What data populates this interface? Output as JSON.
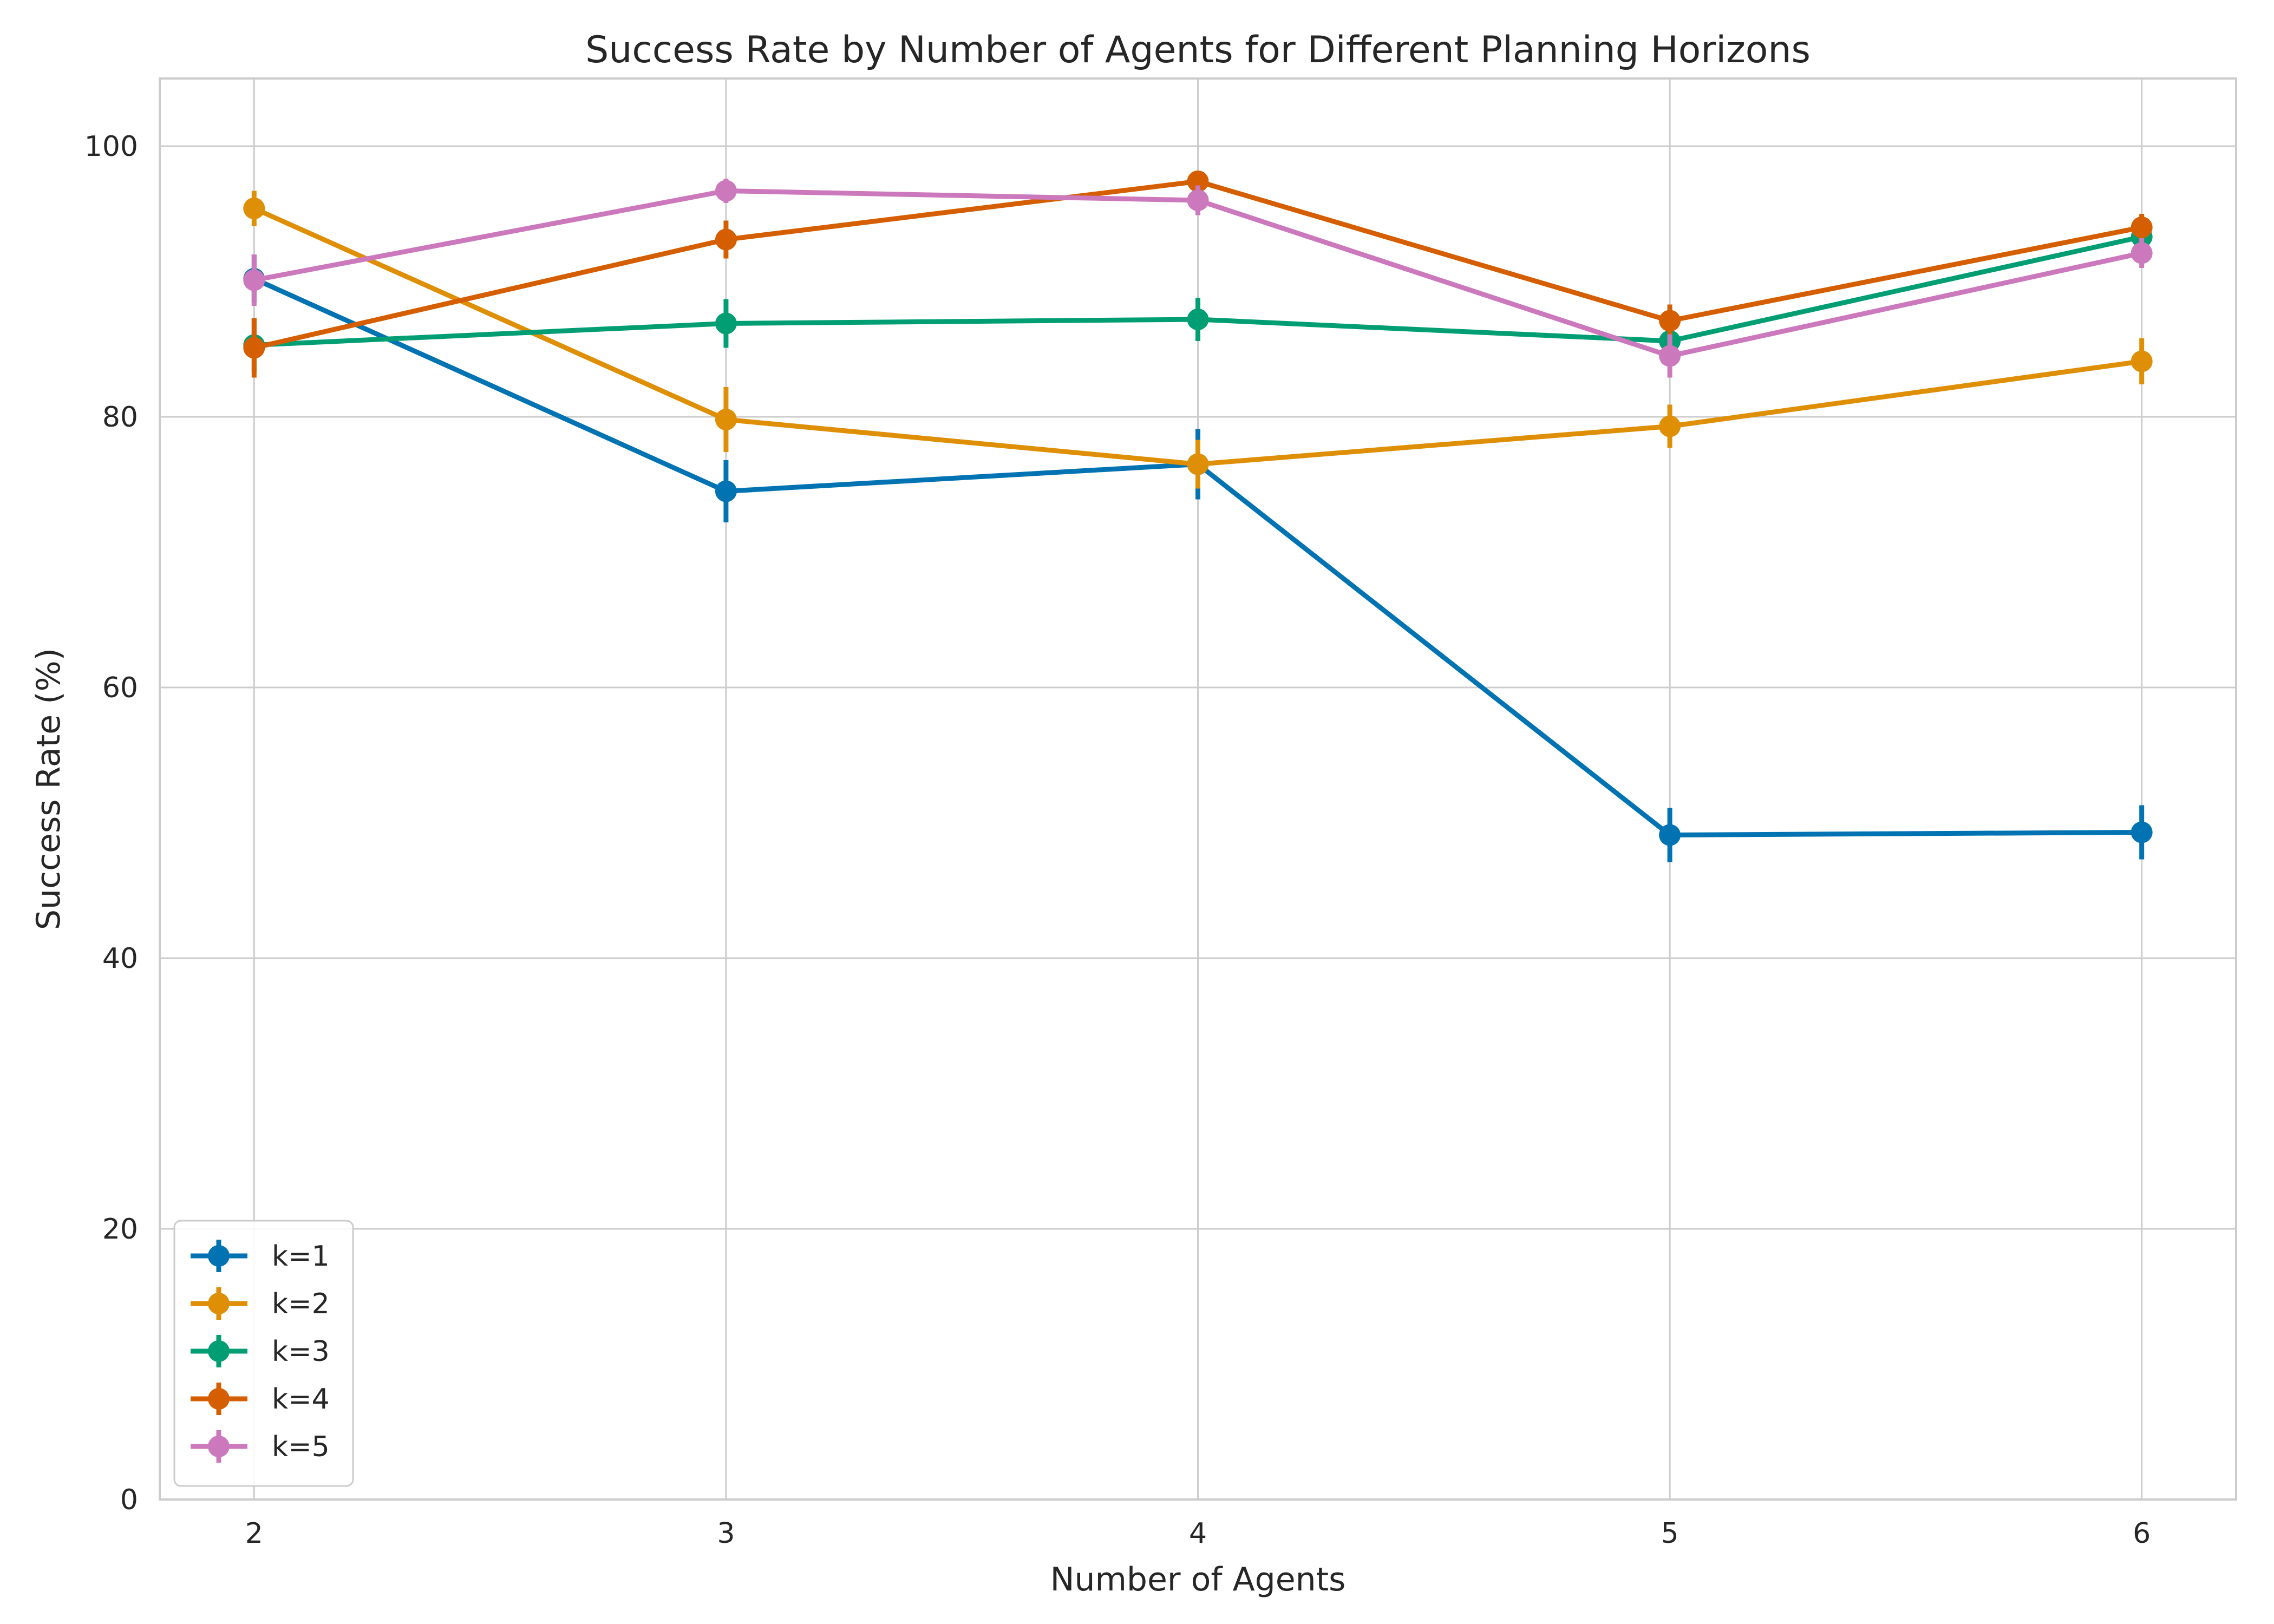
{
  "chart_data": {
    "type": "line",
    "title": "Success Rate by Number of Agents for Different Planning Horizons",
    "xlabel": "Number of Agents",
    "ylabel": "Success Rate (%)",
    "x": [
      2,
      3,
      4,
      5,
      6
    ],
    "x_tick_labels": [
      "2",
      "3",
      "4",
      "5",
      "6"
    ],
    "xlim": [
      1.8,
      6.2
    ],
    "ylim": [
      0,
      105
    ],
    "y_ticks": [
      0,
      20,
      40,
      60,
      80,
      100
    ],
    "y_tick_labels": [
      "0",
      "20",
      "40",
      "60",
      "80",
      "100"
    ],
    "grid": true,
    "legend_position": "lower-left",
    "error_bars": true,
    "series": [
      {
        "name": "k=1",
        "color": "#0173b2",
        "values": [
          90.2,
          74.5,
          76.5,
          49.1,
          49.3
        ],
        "errors": [
          1.8,
          2.3,
          2.6,
          2.0,
          2.0
        ]
      },
      {
        "name": "k=2",
        "color": "#de8f05",
        "values": [
          95.4,
          79.8,
          76.5,
          79.3,
          84.1
        ],
        "errors": [
          1.3,
          2.4,
          1.8,
          1.6,
          1.7
        ]
      },
      {
        "name": "k=3",
        "color": "#029e73",
        "values": [
          85.3,
          86.9,
          87.2,
          85.6,
          93.3
        ],
        "errors": [
          2.0,
          1.8,
          1.6,
          1.0,
          1.0
        ]
      },
      {
        "name": "k=4",
        "color": "#d55e00",
        "values": [
          85.1,
          93.1,
          97.4,
          87.1,
          94.0
        ],
        "errors": [
          2.2,
          1.4,
          0.6,
          1.2,
          1.0
        ]
      },
      {
        "name": "k=5",
        "color": "#cc78bc",
        "values": [
          90.1,
          96.7,
          96.0,
          84.5,
          92.1
        ],
        "errors": [
          1.9,
          0.9,
          1.1,
          1.6,
          1.1
        ]
      }
    ]
  }
}
